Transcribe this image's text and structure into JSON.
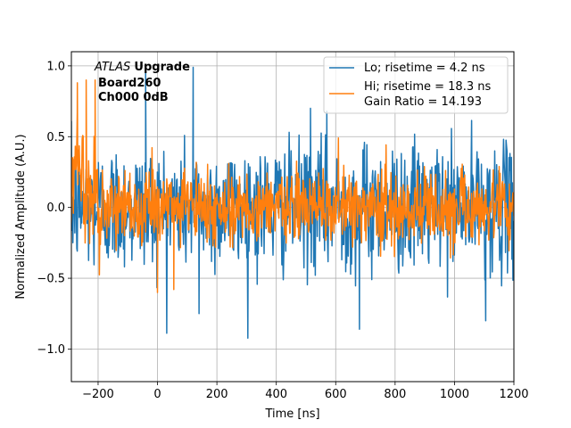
{
  "chart_data": {
    "type": "line",
    "xlabel": "Time [ns]",
    "ylabel": "Normalized Amplitude (A.U.)",
    "xlim": [
      -290,
      1200
    ],
    "ylim": [
      -1.23,
      1.1
    ],
    "grid": true,
    "legend_position": "top-right",
    "x_ticks": [
      -200,
      0,
      200,
      400,
      600,
      800,
      1000,
      1200
    ],
    "x_tick_labels": [
      "−200",
      "0",
      "200",
      "400",
      "600",
      "800",
      "1000",
      "1200"
    ],
    "y_ticks": [
      -1.0,
      -0.5,
      0.0,
      0.5,
      1.0
    ],
    "y_tick_labels": [
      "−1.0",
      "−0.5",
      "0.0",
      "0.5",
      "1.0"
    ],
    "annotation": {
      "line1_italic": "ATLAS",
      "line1_bold": "Upgrade",
      "line2": "Board260",
      "line3": "Ch000 0dB"
    },
    "series": [
      {
        "name": "Lo; risetime = 4.2 ns",
        "color": "#1f77b4",
        "x_range": [
          -290,
          1200
        ],
        "noise_std": 0.22,
        "notable_points": [
          [
            -40,
            0.96
          ],
          [
            120,
            0.99
          ],
          [
            515,
            0.7
          ],
          [
            570,
            0.68
          ],
          [
            680,
            -0.86
          ],
          [
            1105,
            -0.8
          ],
          [
            140,
            -0.75
          ]
        ]
      },
      {
        "name": "Hi; risetime = 18.3 ns\n Gain Ratio = 14.193",
        "color": "#ff7f0e",
        "x_range": [
          -290,
          1200
        ],
        "noise_std": 0.13,
        "notable_points": [
          [
            -270,
            0.88
          ],
          [
            -240,
            0.9
          ],
          [
            -210,
            0.9
          ],
          [
            0,
            -0.6
          ],
          [
            55,
            -0.58
          ],
          [
            -295,
            -0.35
          ]
        ]
      }
    ]
  }
}
